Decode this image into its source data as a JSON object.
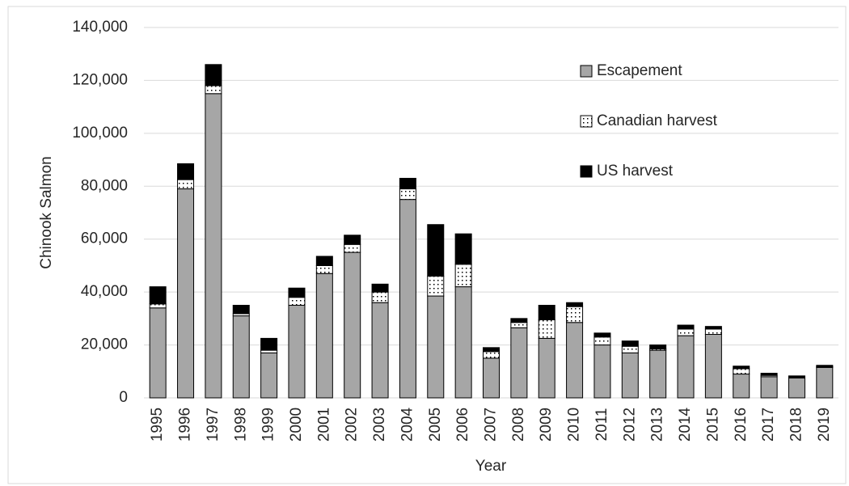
{
  "chart_data": {
    "type": "stacked_bar",
    "ylabel": "Chinook Salmon",
    "xlabel": "Year",
    "categories": [
      "1995",
      "1996",
      "1997",
      "1998",
      "1999",
      "2000",
      "2001",
      "2002",
      "2003",
      "2004",
      "2005",
      "2006",
      "2007",
      "2008",
      "2009",
      "2010",
      "2011",
      "2012",
      "2013",
      "2014",
      "2015",
      "2016",
      "2017",
      "2018",
      "2019"
    ],
    "series": [
      {
        "name": "Escapement",
        "color": "#a6a6a6",
        "values": [
          34000,
          79000,
          115000,
          31000,
          17000,
          35000,
          47000,
          55000,
          36000,
          75000,
          38500,
          42000,
          15000,
          26500,
          22500,
          28500,
          20000,
          17000,
          18000,
          23500,
          24000,
          9000,
          8000,
          7500,
          11500
        ]
      },
      {
        "name": "Canadian harvest",
        "color": "#ffffff",
        "pattern": "dotted",
        "values": [
          1500,
          3500,
          3000,
          800,
          1000,
          3000,
          3000,
          3000,
          4000,
          4000,
          7500,
          8500,
          2500,
          2000,
          7000,
          6000,
          3000,
          2500,
          500,
          2500,
          2000,
          2000,
          500,
          300,
          300
        ]
      },
      {
        "name": "US harvest",
        "color": "#000000",
        "values": [
          6500,
          6000,
          8000,
          3200,
          4500,
          3500,
          3500,
          3500,
          3000,
          4000,
          19500,
          11500,
          1500,
          1500,
          5500,
          1500,
          1500,
          2000,
          1500,
          1500,
          1000,
          1000,
          800,
          500,
          500
        ]
      }
    ],
    "ylim": [
      0,
      140000
    ],
    "yticks": [
      0,
      {
        "value": 20000,
        "label": "20,000"
      },
      {
        "value": 40000,
        "label": "40,000"
      },
      {
        "value": 60000,
        "label": "60,000"
      },
      {
        "value": 80000,
        "label": "80,000"
      },
      {
        "value": 100000,
        "label": "100,000"
      },
      {
        "value": 120000,
        "label": "120,000"
      },
      {
        "value": 140000,
        "label": "140,000"
      }
    ],
    "grid": true,
    "legend": "upper right"
  }
}
